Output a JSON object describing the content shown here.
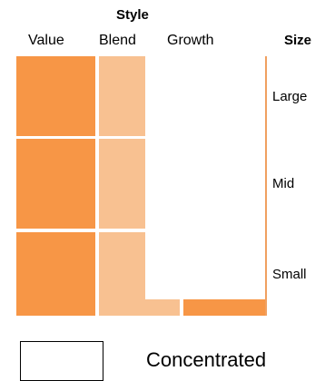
{
  "header": {
    "style_title": "Style",
    "size_title": "Size",
    "columns": [
      "Value",
      "Blend",
      "Growth"
    ]
  },
  "rows": [
    "Large",
    "Mid",
    "Small"
  ],
  "colors": {
    "value": "#f79646",
    "blend": "#f8c191",
    "growth_low": "#f79646",
    "empty": "#ffffff"
  },
  "legend": {
    "label": "Concentrated"
  }
}
